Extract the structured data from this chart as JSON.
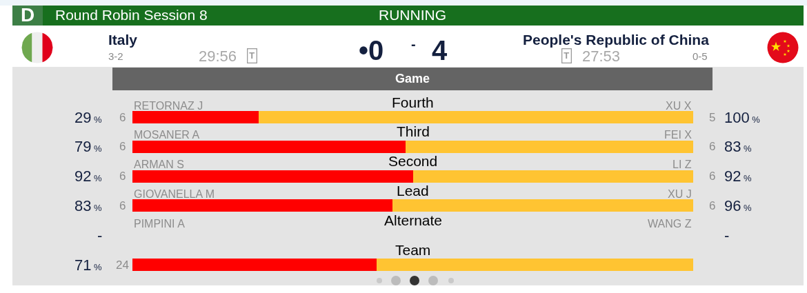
{
  "chart_data": [
    {
      "type": "bar",
      "orientation": "horizontal",
      "stacked": true,
      "legend": false,
      "title": "Round Robin Session 8",
      "subtitle": "RUNNING",
      "categories": [
        "Fourth"
      ],
      "series": [
        {
          "color": "#ff0000",
          "values": [
            29
          ],
          "value_labels": [
            "29%"
          ]
        },
        {
          "color": "#ffc432",
          "values": [
            100
          ],
          "value_labels": [
            "100%"
          ]
        }
      ],
      "annotations": [
        "D",
        "Italy",
        "3-2",
        "29:56",
        "T",
        "•0",
        "-",
        "4",
        "People's Republic of China",
        "T",
        "27:53",
        "0-5",
        "Game",
        "RETORNAZ J",
        "XU X",
        "6",
        "5"
      ]
    },
    {
      "type": "bar",
      "orientation": "horizontal",
      "stacked": true,
      "categories": [
        "Third"
      ],
      "series": [
        {
          "color": "#ff0000",
          "values": [
            79
          ],
          "value_labels": [
            "79%"
          ]
        },
        {
          "color": "#ffc432",
          "values": [
            83
          ],
          "value_labels": [
            "83%"
          ]
        }
      ],
      "annotations": [
        "MOSANER A",
        "FEI X",
        "6",
        "6"
      ]
    },
    {
      "type": "bar",
      "orientation": "horizontal",
      "stacked": true,
      "categories": [
        "Second"
      ],
      "series": [
        {
          "color": "#ff0000",
          "values": [
            92
          ],
          "value_labels": [
            "92%"
          ]
        },
        {
          "color": "#ffc432",
          "values": [
            92
          ],
          "value_labels": [
            "92%"
          ]
        }
      ],
      "annotations": [
        "ARMAN S",
        "LI Z",
        "6",
        "6"
      ]
    },
    {
      "type": "bar",
      "orientation": "horizontal",
      "stacked": true,
      "categories": [
        "Lead"
      ],
      "series": [
        {
          "color": "#ff0000",
          "values": [
            83
          ],
          "value_labels": [
            "83%"
          ]
        },
        {
          "color": "#ffc432",
          "values": [
            96
          ],
          "value_labels": [
            "96%"
          ]
        }
      ],
      "annotations": [
        "GIOVANELLA M",
        "XU J",
        "6",
        "6"
      ]
    },
    {
      "type": "other",
      "annotations": [
        "Alternate",
        "PIMPINI A",
        "WANG Z",
        "-",
        "-"
      ]
    },
    {
      "type": "bar",
      "orientation": "horizontal",
      "stacked": true,
      "categories": [
        "Team"
      ],
      "series": [
        {
          "color": "#ff0000",
          "values": [
            71
          ],
          "value_labels": [
            "71%"
          ]
        },
        {
          "color": "#ffc432",
          "values": [
            92
          ],
          "value_labels": [
            null
          ]
        }
      ],
      "annotations": [
        "24"
      ]
    }
  ]
}
